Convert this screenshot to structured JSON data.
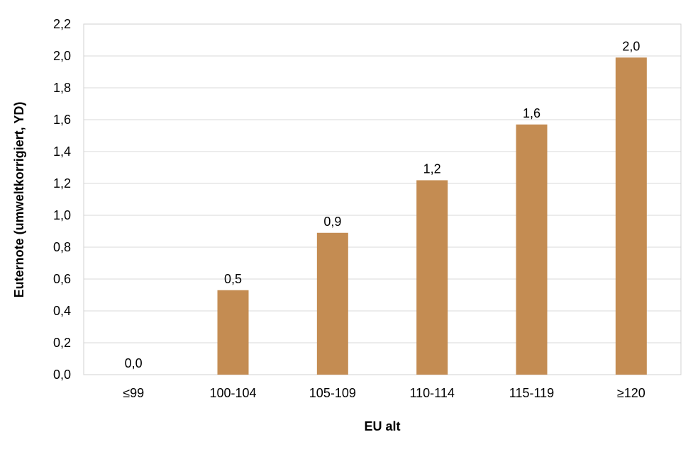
{
  "chart_data": {
    "type": "bar",
    "categories": [
      "≤99",
      "100-104",
      "105-109",
      "110-114",
      "115-119",
      "≥120"
    ],
    "values": [
      0.0,
      0.53,
      0.89,
      1.22,
      1.57,
      1.99
    ],
    "data_labels": [
      "0,0",
      "0,5",
      "0,9",
      "1,2",
      "1,6",
      "2,0"
    ],
    "y_tick_labels": [
      "0,0",
      "0,2",
      "0,4",
      "0,6",
      "0,8",
      "1,0",
      "1,2",
      "1,4",
      "1,6",
      "1,8",
      "2,0",
      "2,2"
    ],
    "title": "",
    "xlabel": "EU alt",
    "ylabel": "Euternote (umweltkorrigiert, YD)",
    "ylim": [
      0,
      2.2
    ],
    "grid": true,
    "bar_color": "#c48c52"
  }
}
